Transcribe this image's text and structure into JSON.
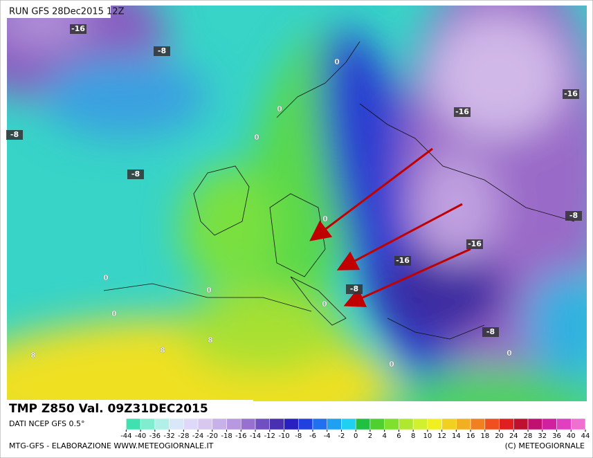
{
  "header": {
    "run": "RUN GFS 28Dec2015 12Z"
  },
  "map": {
    "contour_labels": [
      "-16",
      "-8",
      "0",
      "-16",
      "-16",
      "0",
      "0",
      "-8",
      "-8",
      "-8",
      "0",
      "-16",
      "-16",
      "0",
      "0",
      "-8",
      "0",
      "0",
      "8",
      "8",
      "8",
      "-8",
      "0",
      "0"
    ]
  },
  "footer": {
    "product": "TMP Z850 Val. 09Z31DEC2015",
    "source": "DATI NCEP GFS 0.5°",
    "credit": "MTG-GFS - ELABORAZIONE WWW.METEOGIORNALE.IT",
    "copyright": "(C) METEOGIORNALE"
  },
  "legend": {
    "ticks": [
      -44,
      -40,
      -36,
      -32,
      -28,
      -24,
      -20,
      -18,
      -16,
      -14,
      -12,
      -10,
      -8,
      -6,
      -4,
      -2,
      0,
      2,
      4,
      6,
      8,
      10,
      12,
      14,
      16,
      18,
      20,
      24,
      28,
      32,
      36,
      40,
      44
    ]
  }
}
